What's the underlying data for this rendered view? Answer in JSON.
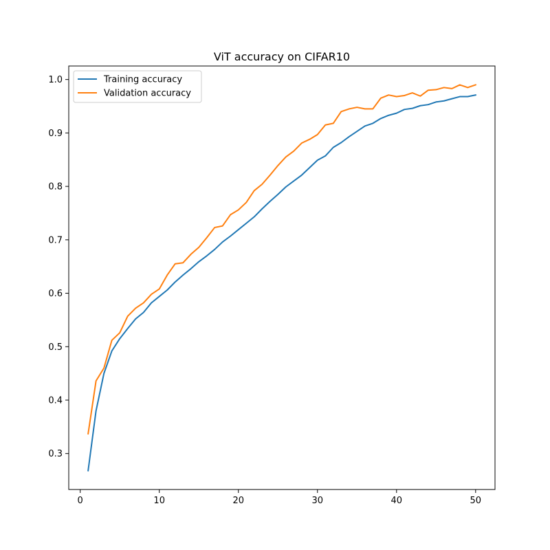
{
  "chart_data": {
    "type": "line",
    "title": "ViT accuracy on CIFAR10",
    "xlabel": "",
    "ylabel": "",
    "xlim": [
      -1.45,
      52.45
    ],
    "ylim": [
      0.2327,
      1.0253
    ],
    "x_ticks": [
      0,
      10,
      20,
      30,
      40,
      50
    ],
    "y_ticks": [
      0.3,
      0.4,
      0.5,
      0.6,
      0.7,
      0.8,
      0.9,
      1.0
    ],
    "x_tick_labels": [
      "0",
      "10",
      "20",
      "30",
      "40",
      "50"
    ],
    "y_tick_labels": [
      "0.3",
      "0.4",
      "0.5",
      "0.6",
      "0.7",
      "0.8",
      "0.9",
      "1.0"
    ],
    "grid": false,
    "legend_position": "top-left",
    "x": [
      1,
      2,
      3,
      4,
      5,
      6,
      7,
      8,
      9,
      10,
      11,
      12,
      13,
      14,
      15,
      16,
      17,
      18,
      19,
      20,
      21,
      22,
      23,
      24,
      25,
      26,
      27,
      28,
      29,
      30,
      31,
      32,
      33,
      34,
      35,
      36,
      37,
      38,
      39,
      40,
      41,
      42,
      43,
      44,
      45,
      46,
      47,
      48,
      49,
      50
    ],
    "series": [
      {
        "name": "Training accuracy",
        "color": "#1f77b4",
        "values": [
          0.268,
          0.38,
          0.45,
          0.492,
          0.515,
          0.534,
          0.552,
          0.564,
          0.582,
          0.594,
          0.606,
          0.621,
          0.634,
          0.646,
          0.659,
          0.67,
          0.682,
          0.696,
          0.707,
          0.719,
          0.731,
          0.743,
          0.758,
          0.772,
          0.785,
          0.799,
          0.81,
          0.821,
          0.835,
          0.849,
          0.857,
          0.873,
          0.882,
          0.893,
          0.903,
          0.913,
          0.918,
          0.927,
          0.933,
          0.937,
          0.944,
          0.946,
          0.951,
          0.953,
          0.958,
          0.96,
          0.964,
          0.968,
          0.968,
          0.971
        ]
      },
      {
        "name": "Validation accuracy",
        "color": "#ff7f0e",
        "values": [
          0.337,
          0.436,
          0.46,
          0.512,
          0.526,
          0.557,
          0.572,
          0.582,
          0.598,
          0.608,
          0.634,
          0.655,
          0.657,
          0.673,
          0.686,
          0.704,
          0.723,
          0.726,
          0.747,
          0.756,
          0.77,
          0.792,
          0.804,
          0.821,
          0.839,
          0.855,
          0.866,
          0.881,
          0.888,
          0.897,
          0.915,
          0.918,
          0.94,
          0.945,
          0.948,
          0.945,
          0.945,
          0.965,
          0.971,
          0.968,
          0.97,
          0.975,
          0.969,
          0.98,
          0.981,
          0.985,
          0.983,
          0.99,
          0.985,
          0.99
        ]
      }
    ]
  }
}
